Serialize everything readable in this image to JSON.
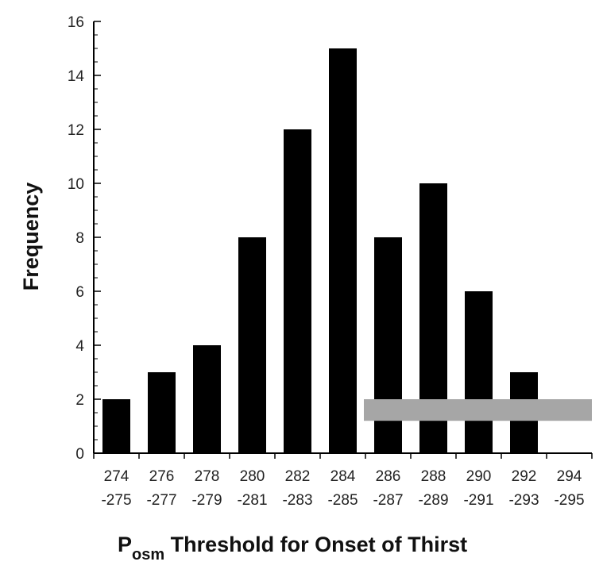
{
  "chart_data": {
    "type": "bar",
    "categories": [
      [
        "274",
        "-275"
      ],
      [
        "276",
        "-277"
      ],
      [
        "278",
        "-279"
      ],
      [
        "280",
        "-281"
      ],
      [
        "282",
        "-283"
      ],
      [
        "284",
        "-285"
      ],
      [
        "286",
        "-287"
      ],
      [
        "288",
        "-289"
      ],
      [
        "290",
        "-291"
      ],
      [
        "292",
        "-293"
      ],
      [
        "294",
        "-295"
      ]
    ],
    "values": [
      2,
      3,
      4,
      8,
      12,
      15,
      8,
      10,
      6,
      3,
      0
    ],
    "ylabel": "Frequency",
    "xlabel": {
      "main": "P",
      "subscript": "osm",
      "rest": " Threshold for Onset of Thirst"
    },
    "ylim": [
      0,
      16
    ],
    "yticks": [
      0,
      2,
      4,
      6,
      8,
      10,
      12,
      14,
      16
    ],
    "grid": false,
    "colors": {
      "bar": "#000000",
      "band": "#a6a6a6",
      "axis": "#000000"
    },
    "band": {
      "x_from": "286-287",
      "x_to": "294-295",
      "y_from": 1.2,
      "y_to": 2.0
    }
  }
}
